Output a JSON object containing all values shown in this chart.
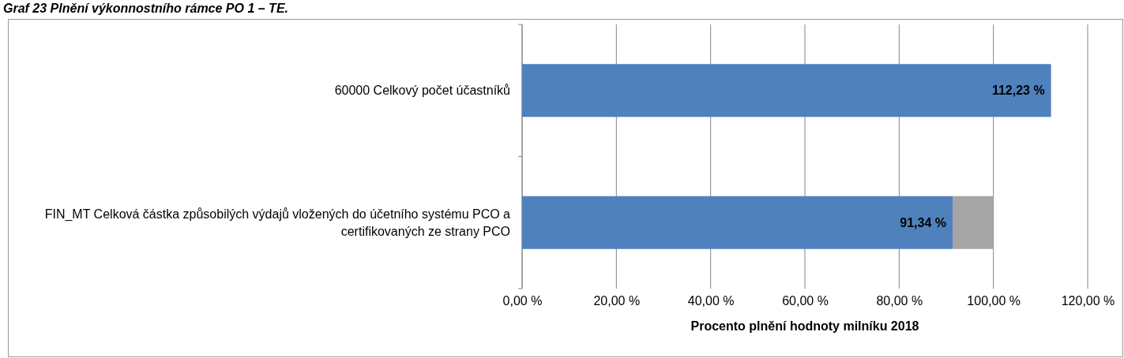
{
  "chart_data": {
    "type": "bar",
    "orientation": "horizontal",
    "stacked": true,
    "title": "Graf 23 Plnění výkonnostního rámce PO 1 – TE.",
    "xlabel": "Procento plnění hodnoty milníku 2018",
    "categories": [
      "60000 Celkový počet účastníků",
      "FIN_MT Celková částka způsobilých výdajů vložených do účetního systému PCO a certifikovaných ze strany PCO"
    ],
    "series": [
      {
        "color": "#4f81bd",
        "values": [
          112.23,
          91.34
        ],
        "value_labels": [
          "112,23 %",
          "91,34 %"
        ]
      },
      {
        "color": "#a5a5a5",
        "values": [
          null,
          8.66
        ],
        "value_labels": [
          null,
          null
        ]
      }
    ],
    "xlim": [
      0,
      120
    ],
    "xticks": [
      {
        "value": 0,
        "label": "0,00 %"
      },
      {
        "value": 20,
        "label": "20,00 %"
      },
      {
        "value": 40,
        "label": "40,00 %"
      },
      {
        "value": 60,
        "label": "60,00 %"
      },
      {
        "value": 80,
        "label": "80,00 %"
      },
      {
        "value": 100,
        "label": "100,00 %"
      },
      {
        "value": 120,
        "label": "120,00 %"
      }
    ],
    "grid": "x"
  }
}
